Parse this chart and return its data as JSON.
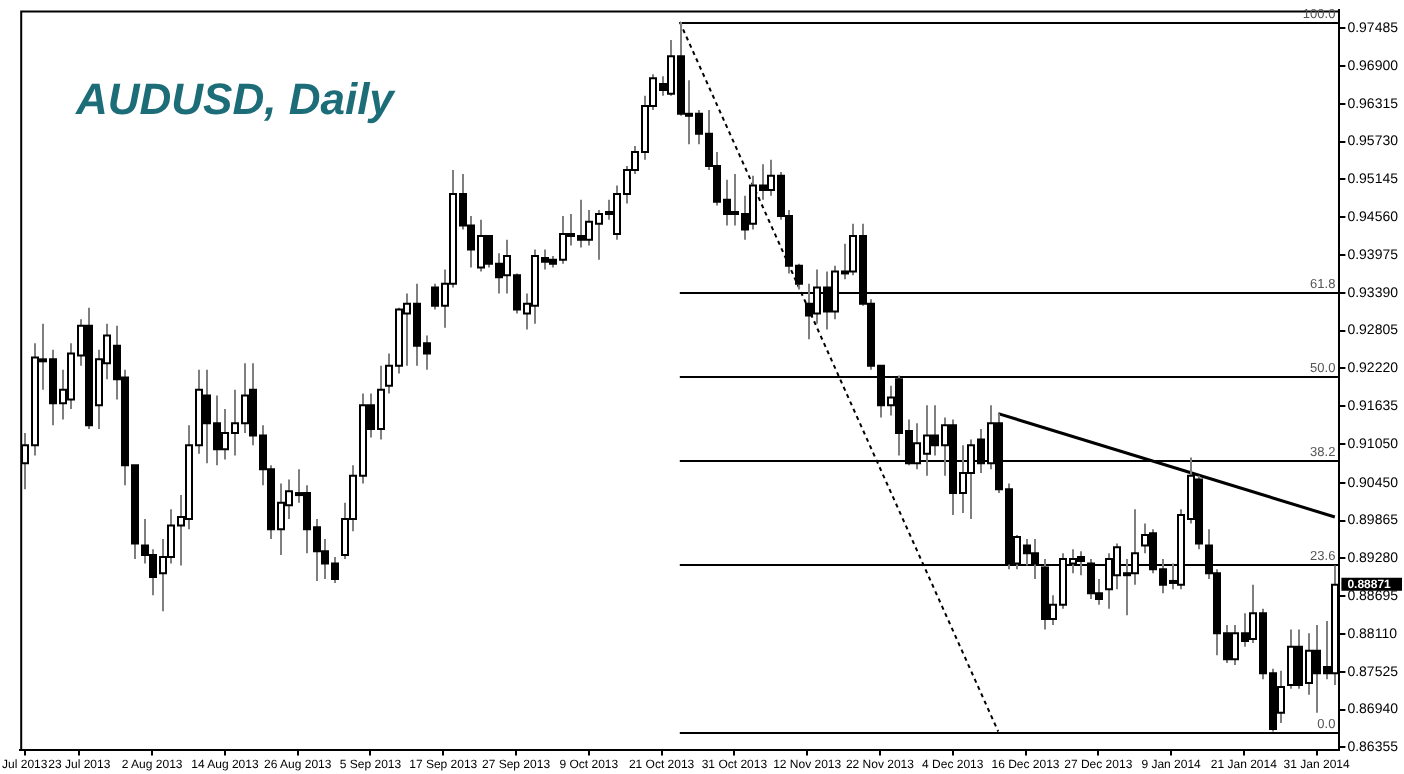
{
  "chart_data": {
    "type": "candlestick",
    "title": "AUDUSD, Daily",
    "categories": [
      "Jul 2013",
      null,
      null,
      null,
      null,
      null,
      "23 Jul 2013",
      null,
      null,
      null,
      null,
      null,
      null,
      null,
      "2 Aug 2013",
      null,
      null,
      null,
      null,
      null,
      null,
      null,
      "14 Aug 2013",
      null,
      null,
      null,
      null,
      null,
      null,
      null,
      "26 Aug 2013",
      null,
      null,
      null,
      null,
      null,
      null,
      null,
      "5 Sep 2013",
      null,
      null,
      null,
      null,
      null,
      null,
      null,
      "17 Sep 2013",
      null,
      null,
      null,
      null,
      null,
      null,
      null,
      "27 Sep 2013",
      null,
      null,
      null,
      null,
      null,
      null,
      null,
      "9 Oct 2013",
      null,
      null,
      null,
      null,
      null,
      null,
      null,
      "21 Oct 2013",
      null,
      null,
      null,
      null,
      null,
      null,
      null,
      "31 Oct 2013",
      null,
      null,
      null,
      null,
      null,
      null,
      null,
      "12 Nov 2013",
      null,
      null,
      null,
      null,
      null,
      null,
      null,
      "22 Nov 2013",
      null,
      null,
      null,
      null,
      null,
      null,
      null,
      "4 Dec 2013",
      null,
      null,
      null,
      null,
      null,
      null,
      null,
      "16 Dec 2013",
      null,
      null,
      null,
      null,
      null,
      null,
      null,
      "27 Dec 2013",
      null,
      null,
      null,
      null,
      null,
      null,
      null,
      "9 Jan 2014",
      null,
      null,
      null,
      null,
      null,
      null,
      null,
      "21 Jan 2014",
      null,
      null,
      null,
      null,
      null,
      null,
      null,
      "31 Jan 2014",
      null,
      null
    ],
    "ohlc": [
      [
        0.9075,
        0.9122,
        0.9035,
        0.9103
      ],
      [
        0.9103,
        0.9261,
        0.9087,
        0.9239
      ],
      [
        0.9236,
        0.9291,
        0.9189,
        0.9233
      ],
      [
        0.9236,
        0.9251,
        0.9134,
        0.9168
      ],
      [
        0.9168,
        0.922,
        0.9143,
        0.9189
      ],
      [
        0.9174,
        0.9261,
        0.9159,
        0.9245
      ],
      [
        0.9242,
        0.9298,
        0.9226,
        0.9288
      ],
      [
        0.9288,
        0.9316,
        0.9128,
        0.9134
      ],
      [
        0.9165,
        0.9251,
        0.9128,
        0.9236
      ],
      [
        0.923,
        0.9291,
        0.9205,
        0.9273
      ],
      [
        0.9257,
        0.9288,
        0.9174,
        0.9205
      ],
      [
        0.9208,
        0.922,
        0.9041,
        0.9072
      ],
      [
        0.9072,
        0.9072,
        0.8927,
        0.8951
      ],
      [
        0.8948,
        0.8989,
        0.892,
        0.8933
      ],
      [
        0.8933,
        0.8942,
        0.8871,
        0.8899
      ],
      [
        0.8905,
        0.8958,
        0.8846,
        0.893
      ],
      [
        0.893,
        0.9004,
        0.892,
        0.8979
      ],
      [
        0.8979,
        0.9026,
        0.8917,
        0.8992
      ],
      [
        0.8989,
        0.9134,
        0.8973,
        0.9103
      ],
      [
        0.9103,
        0.922,
        0.909,
        0.9189
      ],
      [
        0.918,
        0.922,
        0.9075,
        0.9137
      ],
      [
        0.9137,
        0.918,
        0.9072,
        0.9097
      ],
      [
        0.9097,
        0.9159,
        0.9081,
        0.9122
      ],
      [
        0.9122,
        0.9189,
        0.9087,
        0.9137
      ],
      [
        0.9137,
        0.923,
        0.9122,
        0.918
      ],
      [
        0.9189,
        0.923,
        0.9103,
        0.9118
      ],
      [
        0.9118,
        0.9134,
        0.9041,
        0.9066
      ],
      [
        0.9066,
        0.9072,
        0.8958,
        0.8973
      ],
      [
        0.8973,
        0.9044,
        0.8933,
        0.9014
      ],
      [
        0.901,
        0.905,
        0.8989,
        0.9032
      ],
      [
        0.9029,
        0.9066,
        0.9014,
        0.9026
      ],
      [
        0.9029,
        0.9041,
        0.8936,
        0.8973
      ],
      [
        0.8976,
        0.8989,
        0.8893,
        0.8939
      ],
      [
        0.8939,
        0.8958,
        0.8896,
        0.892
      ],
      [
        0.892,
        0.893,
        0.889,
        0.8896
      ],
      [
        0.8933,
        0.9014,
        0.8927,
        0.8989
      ],
      [
        0.8989,
        0.9072,
        0.897,
        0.9056
      ],
      [
        0.9056,
        0.9183,
        0.9044,
        0.9165
      ],
      [
        0.9165,
        0.9183,
        0.9115,
        0.9128
      ],
      [
        0.9128,
        0.9226,
        0.9112,
        0.9189
      ],
      [
        0.9195,
        0.9245,
        0.9183,
        0.9226
      ],
      [
        0.9226,
        0.9316,
        0.9214,
        0.9313
      ],
      [
        0.9307,
        0.9338,
        0.9226,
        0.9322
      ],
      [
        0.9322,
        0.9353,
        0.9226,
        0.9257
      ],
      [
        0.9261,
        0.9273,
        0.922,
        0.9245
      ],
      [
        0.9347,
        0.9353,
        0.9313,
        0.9319
      ],
      [
        0.9319,
        0.9375,
        0.9285,
        0.9353
      ],
      [
        0.9353,
        0.9529,
        0.9347,
        0.9492
      ],
      [
        0.9492,
        0.9523,
        0.9437,
        0.9443
      ],
      [
        0.9443,
        0.9458,
        0.9378,
        0.9406
      ],
      [
        0.9378,
        0.9452,
        0.9372,
        0.9427
      ],
      [
        0.9427,
        0.9427,
        0.9378,
        0.9384
      ],
      [
        0.9384,
        0.94,
        0.9338,
        0.9363
      ],
      [
        0.9366,
        0.9421,
        0.9338,
        0.9396
      ],
      [
        0.9366,
        0.9369,
        0.9307,
        0.9313
      ],
      [
        0.9307,
        0.9338,
        0.9282,
        0.9322
      ],
      [
        0.9319,
        0.9406,
        0.9291,
        0.9396
      ],
      [
        0.9393,
        0.9406,
        0.9375,
        0.9387
      ],
      [
        0.939,
        0.9396,
        0.9378,
        0.9384
      ],
      [
        0.939,
        0.9458,
        0.9384,
        0.943
      ],
      [
        0.943,
        0.9461,
        0.9412,
        0.9427
      ],
      [
        0.9427,
        0.9483,
        0.9409,
        0.9421
      ],
      [
        0.9421,
        0.9467,
        0.9412,
        0.9449
      ],
      [
        0.9446,
        0.9467,
        0.939,
        0.9461
      ],
      [
        0.9461,
        0.9483,
        0.9452,
        0.9464
      ],
      [
        0.943,
        0.9505,
        0.9421,
        0.9492
      ],
      [
        0.9492,
        0.9535,
        0.9477,
        0.9529
      ],
      [
        0.9529,
        0.9566,
        0.9523,
        0.9557
      ],
      [
        0.9557,
        0.9644,
        0.9545,
        0.9628
      ],
      [
        0.9628,
        0.9677,
        0.9622,
        0.9671
      ],
      [
        0.9662,
        0.9674,
        0.9644,
        0.9653
      ],
      [
        0.9647,
        0.973,
        0.9644,
        0.9705
      ],
      [
        0.9705,
        0.9758,
        0.9613,
        0.9616
      ],
      [
        0.9616,
        0.9668,
        0.9569,
        0.9613
      ],
      [
        0.9616,
        0.9622,
        0.9569,
        0.9585
      ],
      [
        0.9585,
        0.9622,
        0.9529,
        0.9535
      ],
      [
        0.9535,
        0.9557,
        0.9474,
        0.948
      ],
      [
        0.9483,
        0.9514,
        0.9443,
        0.9461
      ],
      [
        0.9464,
        0.9523,
        0.9443,
        0.9461
      ],
      [
        0.9461,
        0.9489,
        0.9421,
        0.9437
      ],
      [
        0.9446,
        0.952,
        0.9437,
        0.9505
      ],
      [
        0.9505,
        0.9538,
        0.9483,
        0.9498
      ],
      [
        0.9498,
        0.9545,
        0.9489,
        0.952
      ],
      [
        0.952,
        0.9526,
        0.9452,
        0.9458
      ],
      [
        0.9458,
        0.9467,
        0.9369,
        0.9381
      ],
      [
        0.9381,
        0.9384,
        0.9344,
        0.9353
      ],
      [
        0.9322,
        0.9353,
        0.9267,
        0.9304
      ],
      [
        0.9307,
        0.9375,
        0.9291,
        0.9347
      ],
      [
        0.9347,
        0.9372,
        0.9282,
        0.931
      ],
      [
        0.931,
        0.9381,
        0.9298,
        0.9372
      ],
      [
        0.9372,
        0.9415,
        0.936,
        0.9369
      ],
      [
        0.9372,
        0.9446,
        0.9366,
        0.9427
      ],
      [
        0.9427,
        0.9446,
        0.9319,
        0.9322
      ],
      [
        0.9322,
        0.9329,
        0.922,
        0.9226
      ],
      [
        0.9226,
        0.9226,
        0.9146,
        0.9165
      ],
      [
        0.9165,
        0.9195,
        0.9149,
        0.9177
      ],
      [
        0.9205,
        0.9211,
        0.9087,
        0.9122
      ],
      [
        0.9125,
        0.9143,
        0.9072,
        0.9075
      ],
      [
        0.9075,
        0.9137,
        0.9066,
        0.9106
      ],
      [
        0.909,
        0.9165,
        0.9056,
        0.9118
      ],
      [
        0.9118,
        0.9165,
        0.9087,
        0.9103
      ],
      [
        0.9103,
        0.9146,
        0.9056,
        0.9134
      ],
      [
        0.9134,
        0.9143,
        0.8995,
        0.9029
      ],
      [
        0.9029,
        0.9103,
        0.8998,
        0.906
      ],
      [
        0.906,
        0.9112,
        0.8989,
        0.9103
      ],
      [
        0.9112,
        0.9128,
        0.906,
        0.9075
      ],
      [
        0.9075,
        0.9165,
        0.9066,
        0.9137
      ],
      [
        0.9137,
        0.9152,
        0.9029,
        0.9035
      ],
      [
        0.9035,
        0.9044,
        0.8911,
        0.892
      ],
      [
        0.892,
        0.8964,
        0.8911,
        0.8961
      ],
      [
        0.8948,
        0.8958,
        0.8917,
        0.8936
      ],
      [
        0.8936,
        0.8958,
        0.8896,
        0.892
      ],
      [
        0.8914,
        0.8927,
        0.8818,
        0.8834
      ],
      [
        0.8834,
        0.8871,
        0.8825,
        0.8856
      ],
      [
        0.8856,
        0.8936,
        0.885,
        0.8927
      ],
      [
        0.892,
        0.8942,
        0.8905,
        0.8927
      ],
      [
        0.893,
        0.8939,
        0.8902,
        0.8924
      ],
      [
        0.892,
        0.8927,
        0.8865,
        0.8874
      ],
      [
        0.8874,
        0.8896,
        0.8856,
        0.8865
      ],
      [
        0.888,
        0.8936,
        0.885,
        0.8927
      ],
      [
        0.8902,
        0.8951,
        0.888,
        0.8945
      ],
      [
        0.8905,
        0.8927,
        0.884,
        0.8902
      ],
      [
        0.8905,
        0.9004,
        0.8887,
        0.8936
      ],
      [
        0.8948,
        0.8982,
        0.8936,
        0.8964
      ],
      [
        0.8967,
        0.8973,
        0.8905,
        0.8911
      ],
      [
        0.8911,
        0.8927,
        0.8874,
        0.8887
      ],
      [
        0.8893,
        0.892,
        0.888,
        0.889
      ],
      [
        0.8887,
        0.9004,
        0.888,
        0.8995
      ],
      [
        0.8989,
        0.9084,
        0.8982,
        0.9056
      ],
      [
        0.905,
        0.9056,
        0.8942,
        0.8951
      ],
      [
        0.8948,
        0.8973,
        0.8896,
        0.8905
      ],
      [
        0.8905,
        0.8911,
        0.8778,
        0.8812
      ],
      [
        0.8812,
        0.8825,
        0.8766,
        0.8772
      ],
      [
        0.8772,
        0.8825,
        0.8763,
        0.8812
      ],
      [
        0.8812,
        0.8843,
        0.8791,
        0.88
      ],
      [
        0.8803,
        0.8887,
        0.8797,
        0.8843
      ],
      [
        0.8843,
        0.885,
        0.8741,
        0.875
      ],
      [
        0.875,
        0.8757,
        0.866,
        0.8664
      ],
      [
        0.8689,
        0.8754,
        0.8673,
        0.8729
      ],
      [
        0.8732,
        0.8818,
        0.8726,
        0.8791
      ],
      [
        0.8791,
        0.8818,
        0.8726,
        0.8732
      ],
      [
        0.8735,
        0.8812,
        0.8717,
        0.8785
      ],
      [
        0.8785,
        0.8825,
        0.8689,
        0.875
      ],
      [
        0.876,
        0.8831,
        0.8741,
        0.875
      ],
      [
        0.875,
        0.8917,
        0.8732,
        0.88871
      ]
    ],
    "series": [
      {
        "type": "line",
        "color": "#000000",
        "line_style": "solid",
        "values": [
          null,
          null,
          null,
          null,
          null,
          null,
          null,
          null,
          null,
          null,
          null,
          null,
          null,
          null,
          null,
          null,
          null,
          null,
          null,
          null,
          null,
          null,
          null,
          null,
          null,
          null,
          null,
          null,
          null,
          null,
          null,
          null,
          null,
          null,
          null,
          null,
          null,
          null,
          null,
          null,
          null,
          null,
          null,
          null,
          null,
          null,
          null,
          null,
          null,
          null,
          null,
          null,
          null,
          null,
          null,
          null,
          null,
          null,
          null,
          null,
          null,
          null,
          null,
          null,
          null,
          null,
          null,
          null,
          null,
          null,
          null,
          null,
          null,
          null,
          null,
          null,
          null,
          null,
          null,
          null,
          null,
          null,
          null,
          null,
          null,
          null,
          null,
          null,
          null,
          null,
          null,
          null,
          null,
          null,
          null,
          null,
          null,
          null,
          null,
          null,
          null,
          null,
          null,
          null,
          null,
          null,
          null,
          0.9152,
          null,
          null,
          null,
          null,
          null,
          null,
          null,
          null,
          null,
          null,
          null,
          null,
          null,
          null,
          null,
          null,
          null,
          null,
          null,
          null,
          null,
          null,
          null,
          null,
          null,
          null,
          null,
          null,
          null,
          null,
          null,
          null,
          null,
          null,
          null,
          null,
          0.8992
        ]
      },
      {
        "type": "line",
        "color": "#000000",
        "line_style": "dotted",
        "values": [
          null,
          null,
          null,
          null,
          null,
          null,
          null,
          null,
          null,
          null,
          null,
          null,
          null,
          null,
          null,
          null,
          null,
          null,
          null,
          null,
          null,
          null,
          null,
          null,
          null,
          null,
          null,
          null,
          null,
          null,
          null,
          null,
          null,
          null,
          null,
          null,
          null,
          null,
          null,
          null,
          null,
          null,
          null,
          null,
          null,
          null,
          null,
          null,
          null,
          null,
          null,
          null,
          null,
          null,
          null,
          null,
          null,
          null,
          null,
          null,
          null,
          null,
          null,
          null,
          null,
          null,
          null,
          null,
          null,
          null,
          null,
          null,
          0.9758,
          null,
          null,
          null,
          null,
          null,
          null,
          null,
          null,
          null,
          null,
          null,
          null,
          null,
          null,
          null,
          null,
          null,
          null,
          null,
          null,
          null,
          null,
          null,
          null,
          null,
          null,
          null,
          null,
          null,
          null,
          null,
          null,
          null,
          null,
          0.866,
          null,
          null,
          null,
          null,
          null,
          null,
          null,
          null,
          null,
          null,
          null,
          null,
          null,
          null,
          null,
          null,
          null,
          null,
          null,
          null,
          null,
          null,
          null,
          null,
          null,
          null,
          null,
          null,
          null,
          null,
          null,
          null,
          null,
          null,
          null,
          null,
          null
        ]
      }
    ],
    "ref_lines": [
      {
        "axis": "y",
        "value": 0.9758
      },
      {
        "axis": "y",
        "value": 0.9339
      },
      {
        "axis": "y",
        "value": 0.9209
      },
      {
        "axis": "y",
        "value": 0.9079
      },
      {
        "axis": "y",
        "value": 0.8919
      },
      {
        "axis": "y",
        "value": 0.866
      }
    ],
    "annotations": [
      {
        "text": "100.0",
        "y": 0.9758
      },
      {
        "text": "61.8",
        "y": 0.9339
      },
      {
        "text": "50.0",
        "y": 0.9209
      },
      {
        "text": "38.2",
        "y": 0.9079
      },
      {
        "text": "23.6",
        "y": 0.8919
      },
      {
        "text": "0.0",
        "y": 0.866
      },
      "0.88871"
    ],
    "ylim": [
      0.8632,
      0.9776
    ],
    "yticks": [
      {
        "value": 0.97485,
        "label": "0.97485"
      },
      {
        "value": 0.969,
        "label": "0.96900"
      },
      {
        "value": 0.96315,
        "label": "0.96315"
      },
      {
        "value": 0.9573,
        "label": "0.95730"
      },
      {
        "value": 0.95145,
        "label": "0.95145"
      },
      {
        "value": 0.9456,
        "label": "0.94560"
      },
      {
        "value": 0.93975,
        "label": "0.93975"
      },
      {
        "value": 0.9339,
        "label": "0.93390"
      },
      {
        "value": 0.92805,
        "label": "0.92805"
      },
      {
        "value": 0.9222,
        "label": "0.92220"
      },
      {
        "value": 0.91635,
        "label": "0.91635"
      },
      {
        "value": 0.9105,
        "label": "0.91050"
      },
      {
        "value": 0.9045,
        "label": "0.90450"
      },
      {
        "value": 0.89865,
        "label": "0.89865"
      },
      {
        "value": 0.8928,
        "label": "0.89280"
      },
      {
        "value": 0.88695,
        "label": "0.88695"
      },
      {
        "value": 0.8811,
        "label": "0.88110"
      },
      {
        "value": 0.87525,
        "label": "0.87525"
      },
      {
        "value": 0.8694,
        "label": "0.86940"
      },
      {
        "value": 0.86355,
        "label": "0.86355"
      }
    ]
  }
}
